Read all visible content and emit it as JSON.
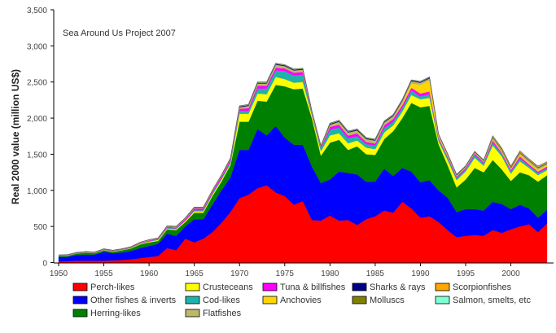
{
  "chart_data": {
    "type": "area",
    "stacked": true,
    "title": "Sea Around Us Project 2007",
    "xlabel": "",
    "ylabel": "Real 2000 value (million US$)",
    "xlim": [
      1950,
      2004
    ],
    "ylim": [
      0,
      3500
    ],
    "yticks": [
      0,
      500,
      1000,
      1500,
      2000,
      2500,
      3000,
      3500
    ],
    "ytick_labels": [
      "0",
      "500",
      "1,000",
      "1,500",
      "2,000",
      "2,500",
      "3,000",
      "3,500"
    ],
    "xticks": [
      1950,
      1955,
      1960,
      1965,
      1970,
      1975,
      1980,
      1985,
      1990,
      1995,
      2000
    ],
    "xtick_labels": [
      "1950",
      "1955",
      "1960",
      "1965",
      "1970",
      "1975",
      "1980",
      "1985",
      "1990",
      "1995",
      "2000"
    ],
    "grid": false,
    "legend_position": "bottom",
    "x": [
      1950,
      1951,
      1952,
      1953,
      1954,
      1955,
      1956,
      1957,
      1958,
      1959,
      1960,
      1961,
      1962,
      1963,
      1964,
      1965,
      1966,
      1967,
      1968,
      1969,
      1970,
      1971,
      1972,
      1973,
      1974,
      1975,
      1976,
      1977,
      1978,
      1979,
      1980,
      1981,
      1982,
      1983,
      1984,
      1985,
      1986,
      1987,
      1988,
      1989,
      1990,
      1991,
      1992,
      1993,
      1994,
      1995,
      1996,
      1997,
      1998,
      1999,
      2000,
      2001,
      2002,
      2003,
      2004
    ],
    "series": [
      {
        "name": "Perch-likes",
        "color": "#ff0000",
        "values": [
          15,
          20,
          25,
          25,
          25,
          25,
          30,
          35,
          45,
          60,
          75,
          90,
          200,
          170,
          330,
          280,
          330,
          420,
          550,
          700,
          890,
          940,
          1030,
          1070,
          970,
          920,
          800,
          850,
          590,
          580,
          650,
          580,
          590,
          520,
          600,
          640,
          720,
          690,
          840,
          750,
          620,
          640,
          560,
          450,
          350,
          370,
          380,
          370,
          450,
          410,
          460,
          500,
          530,
          420,
          540
        ]
      },
      {
        "name": "Other fishes & inverts",
        "color": "#0000ff",
        "values": [
          65,
          60,
          80,
          85,
          85,
          125,
          100,
          105,
          115,
          140,
          155,
          170,
          200,
          200,
          170,
          320,
          270,
          380,
          450,
          480,
          670,
          620,
          820,
          690,
          920,
          810,
          830,
          780,
          740,
          520,
          500,
          680,
          650,
          700,
          520,
          480,
          580,
          510,
          470,
          510,
          490,
          500,
          440,
          450,
          350,
          370,
          360,
          350,
          390,
          400,
          280,
          300,
          220,
          200,
          190
        ]
      },
      {
        "name": "Herring-likes",
        "color": "#008000",
        "values": [
          10,
          15,
          20,
          25,
          20,
          20,
          20,
          30,
          35,
          50,
          50,
          40,
          60,
          80,
          60,
          90,
          90,
          120,
          120,
          170,
          390,
          390,
          390,
          470,
          570,
          710,
          770,
          780,
          670,
          380,
          510,
          440,
          320,
          390,
          380,
          370,
          410,
          620,
          690,
          950,
          1040,
          1030,
          640,
          450,
          340,
          410,
          570,
          530,
          580,
          480,
          390,
          450,
          460,
          500,
          480
        ]
      },
      {
        "name": "Crusteceans",
        "color": "#ffff00",
        "values": [
          3,
          3,
          4,
          4,
          4,
          5,
          5,
          5,
          6,
          8,
          10,
          12,
          10,
          12,
          15,
          20,
          20,
          20,
          25,
          20,
          110,
          110,
          100,
          100,
          110,
          100,
          90,
          90,
          40,
          60,
          100,
          90,
          90,
          80,
          90,
          80,
          90,
          80,
          90,
          110,
          110,
          110,
          40,
          70,
          100,
          110,
          140,
          90,
          200,
          180,
          100,
          150,
          100,
          90,
          70
        ]
      },
      {
        "name": "Cod-likes",
        "color": "#20b2aa",
        "values": [
          3,
          3,
          3,
          4,
          4,
          5,
          5,
          5,
          5,
          6,
          8,
          8,
          10,
          10,
          10,
          15,
          15,
          20,
          20,
          30,
          40,
          40,
          70,
          80,
          90,
          110,
          100,
          100,
          20,
          40,
          80,
          80,
          70,
          60,
          50,
          50,
          60,
          50,
          50,
          60,
          40,
          50,
          30,
          30,
          30,
          30,
          40,
          30,
          40,
          30,
          30,
          40,
          30,
          30,
          30
        ]
      },
      {
        "name": "Tuna & billfishes",
        "color": "#ff00ff",
        "values": [
          5,
          5,
          5,
          6,
          6,
          6,
          6,
          6,
          7,
          8,
          10,
          12,
          15,
          15,
          20,
          25,
          25,
          25,
          30,
          30,
          30,
          40,
          40,
          40,
          40,
          40,
          40,
          40,
          20,
          20,
          40,
          40,
          40,
          40,
          30,
          30,
          40,
          40,
          40,
          40,
          40,
          40,
          20,
          20,
          20,
          20,
          20,
          20,
          30,
          20,
          20,
          30,
          20,
          20,
          20
        ]
      },
      {
        "name": "Anchovies",
        "color": "#ffd700",
        "values": [
          0,
          0,
          0,
          0,
          0,
          0,
          0,
          0,
          0,
          0,
          0,
          0,
          0,
          0,
          0,
          0,
          0,
          0,
          0,
          0,
          0,
          0,
          0,
          0,
          0,
          0,
          0,
          0,
          0,
          0,
          0,
          0,
          0,
          0,
          0,
          0,
          0,
          0,
          20,
          60,
          120,
          150,
          20,
          10,
          0,
          0,
          0,
          0,
          10,
          10,
          10,
          20,
          20,
          20,
          20
        ]
      },
      {
        "name": "Flatfishes",
        "color": "#bdb76b",
        "values": [
          3,
          3,
          2,
          2,
          2,
          3,
          3,
          3,
          4,
          5,
          6,
          6,
          8,
          8,
          8,
          10,
          10,
          10,
          10,
          10,
          20,
          30,
          30,
          30,
          40,
          30,
          30,
          30,
          10,
          10,
          30,
          40,
          40,
          40,
          40,
          40,
          40,
          40,
          40,
          30,
          30,
          30,
          20,
          20,
          20,
          20,
          20,
          20,
          30,
          30,
          20,
          30,
          30,
          30,
          20
        ]
      },
      {
        "name": "Sharks & rays",
        "color": "#00008b",
        "values": [
          1,
          1,
          1,
          1,
          1,
          1,
          1,
          1,
          1,
          2,
          2,
          2,
          3,
          3,
          3,
          3,
          3,
          3,
          3,
          3,
          10,
          10,
          10,
          10,
          10,
          10,
          10,
          10,
          5,
          5,
          10,
          10,
          10,
          10,
          10,
          10,
          10,
          10,
          10,
          10,
          10,
          10,
          5,
          5,
          5,
          5,
          5,
          5,
          5,
          5,
          5,
          5,
          5,
          5,
          5
        ]
      },
      {
        "name": "Molluscs",
        "color": "#808000",
        "values": [
          0,
          0,
          0,
          0,
          0,
          0,
          0,
          0,
          1,
          1,
          1,
          1,
          2,
          2,
          2,
          3,
          3,
          3,
          3,
          3,
          5,
          5,
          5,
          5,
          5,
          5,
          5,
          5,
          3,
          3,
          5,
          5,
          5,
          5,
          5,
          5,
          5,
          5,
          5,
          5,
          5,
          5,
          3,
          3,
          3,
          3,
          3,
          3,
          5,
          5,
          5,
          5,
          5,
          5,
          5
        ]
      },
      {
        "name": "Scorpionfishes",
        "color": "#ffa500",
        "values": [
          0,
          0,
          0,
          0,
          0,
          0,
          0,
          0,
          0,
          0,
          0,
          0,
          0,
          0,
          0,
          0,
          0,
          0,
          0,
          0,
          0,
          0,
          0,
          0,
          0,
          0,
          0,
          0,
          0,
          0,
          0,
          0,
          0,
          0,
          0,
          0,
          0,
          0,
          0,
          0,
          0,
          0,
          0,
          0,
          0,
          0,
          0,
          0,
          10,
          10,
          10,
          10,
          10,
          10,
          10
        ]
      },
      {
        "name": "Salmon, smelts, etc",
        "color": "#7fffd4",
        "values": [
          0,
          0,
          0,
          0,
          0,
          0,
          0,
          0,
          1,
          1,
          1,
          1,
          2,
          2,
          2,
          2,
          2,
          2,
          2,
          2,
          5,
          5,
          5,
          5,
          5,
          5,
          5,
          5,
          3,
          3,
          5,
          5,
          5,
          5,
          5,
          5,
          5,
          5,
          5,
          5,
          5,
          5,
          2,
          2,
          2,
          2,
          2,
          2,
          5,
          5,
          5,
          5,
          5,
          5,
          5
        ]
      }
    ],
    "legend": [
      [
        "Perch-likes",
        "Crusteceans",
        "Tuna & billfishes",
        "Sharks & rays",
        "Scorpionfishes"
      ],
      [
        "Other fishes & inverts",
        "Cod-likes",
        "Anchovies",
        "Molluscs",
        "Salmon, smelts, etc"
      ],
      [
        "Herring-likes",
        "Flatfishes"
      ]
    ]
  }
}
